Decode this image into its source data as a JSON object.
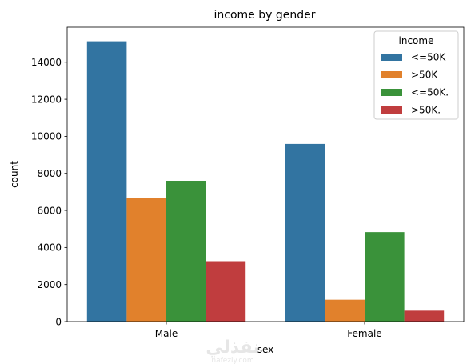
{
  "chart_data": {
    "type": "bar",
    "title": "income by gender",
    "xlabel": "sex",
    "ylabel": "count",
    "categories": [
      "Male",
      "Female"
    ],
    "series": [
      {
        "name": "<=50K",
        "values": [
          15130,
          9590
        ],
        "color": "#3274a1"
      },
      {
        "name": ">50K",
        "values": [
          6660,
          1180
        ],
        "color": "#e1812c"
      },
      {
        "name": "<=50K.",
        "values": [
          7600,
          4830
        ],
        "color": "#3a923a"
      },
      {
        "name": ">50K.",
        "values": [
          3260,
          590
        ],
        "color": "#c03d3e"
      }
    ],
    "ylim": [
      0,
      15890
    ],
    "yticks": [
      0,
      2000,
      4000,
      6000,
      8000,
      10000,
      12000,
      14000
    ],
    "ytick_labels": [
      "0",
      "2000",
      "4000",
      "6000",
      "8000",
      "10000",
      "12000",
      "14000"
    ],
    "grid": false,
    "legend": {
      "title": "income",
      "placement": "top-right"
    }
  },
  "watermark": {
    "arabic": "نفذلي",
    "latin": "nafezly.com"
  }
}
